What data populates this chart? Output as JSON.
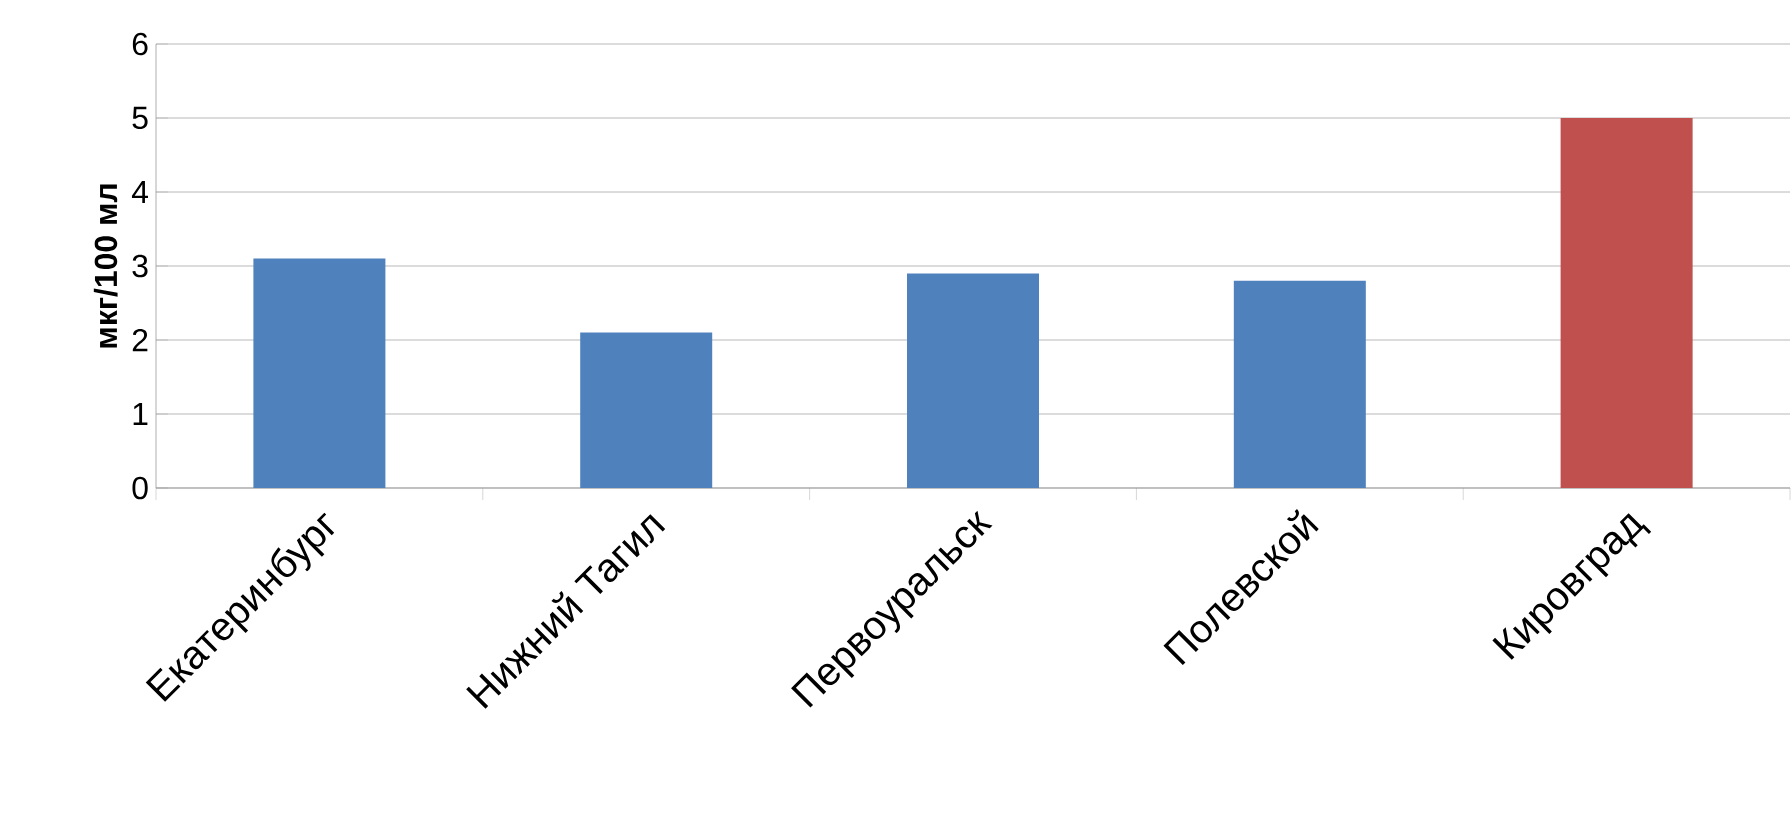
{
  "chart_data": {
    "type": "bar",
    "ylabel": "**мкг/100 мл**",
    "categories": [
      "Екатеринбург",
      "Нижний Тагил",
      "Первоуральск",
      "Полевской",
      "Кировград"
    ],
    "values": [
      3.1,
      2.1,
      2.9,
      2.8,
      5.0
    ],
    "colors": [
      "#4f81bd",
      "#4f81bd",
      "#4f81bd",
      "#4f81bd",
      "#c0504d"
    ],
    "ylim": [
      0,
      6
    ],
    "yticks": [
      0,
      1,
      2,
      3,
      4,
      5,
      6
    ],
    "grid": "y"
  }
}
